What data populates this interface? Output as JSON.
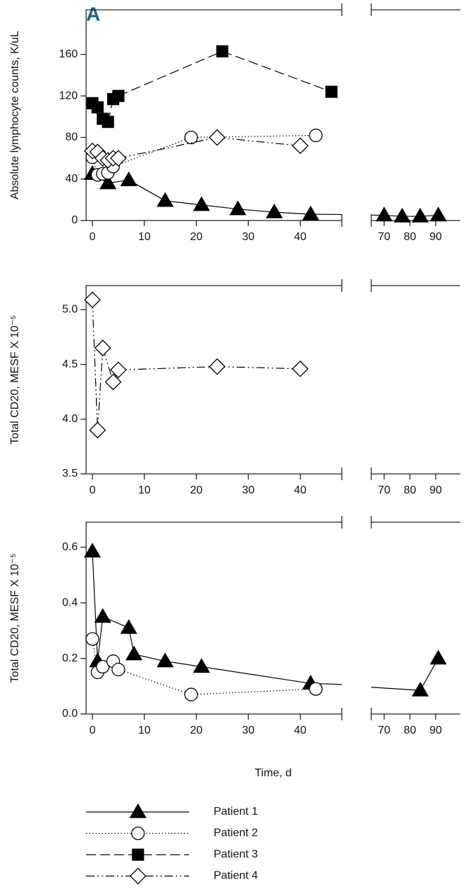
{
  "panel_label": "A",
  "legend_location": "bottom",
  "chart_data": [
    {
      "type": "line",
      "ylabel": "Absolute lymphocyte counts, K/uL",
      "xlim": [
        [
          -1.2,
          48
        ],
        [
          65,
          99.5
        ]
      ],
      "xticks": [
        0,
        10,
        20,
        30,
        40,
        70,
        80,
        90
      ],
      "ylim": [
        0,
        203
      ],
      "yticks": [
        0,
        40,
        80,
        120,
        160
      ],
      "series": [
        {
          "name": "Patient 1",
          "color": "#000000",
          "marker": "triangle",
          "marker_fill": "#000000",
          "line": "solid",
          "x": [
            0,
            3,
            7,
            14,
            21,
            28,
            35,
            42,
            70,
            77,
            84,
            91
          ],
          "values": [
            45,
            36,
            39,
            19,
            15,
            11,
            8,
            6,
            5,
            4,
            4,
            5
          ]
        },
        {
          "name": "Patient 2",
          "color": "#000000",
          "marker": "circle",
          "marker_fill": "#ffffff",
          "line": "dotted",
          "x": [
            0,
            1,
            2,
            3,
            4,
            19,
            43
          ],
          "values": [
            61,
            44,
            45,
            46,
            52,
            80,
            82
          ]
        },
        {
          "name": "Patient 3",
          "color": "#000000",
          "marker": "square",
          "marker_fill": "#000000",
          "line": "dashed",
          "x": [
            0,
            1,
            2,
            3,
            4,
            5,
            25,
            46
          ],
          "values": [
            113,
            109,
            98,
            95,
            117,
            120,
            163,
            124
          ]
        },
        {
          "name": "Patient 4",
          "color": "#000000",
          "marker": "diamond",
          "marker_fill": "#ffffff",
          "line": "dashdotdot",
          "x": [
            0,
            1,
            2,
            3,
            4,
            5,
            24,
            40
          ],
          "values": [
            67,
            66,
            60,
            58,
            60,
            60,
            80,
            72
          ]
        }
      ]
    },
    {
      "type": "line",
      "ylabel": "Total CD20, MESF X 10⁻⁵",
      "xlim": [
        [
          -1.2,
          48
        ],
        [
          65,
          99.5
        ]
      ],
      "xticks": [
        0,
        10,
        20,
        30,
        40,
        70,
        80,
        90
      ],
      "ylim": [
        3.5,
        5.22
      ],
      "yticks": [
        3.5,
        {
          "value": 4,
          "label": "4.0"
        },
        4.5,
        {
          "value": 5,
          "label": "5.0"
        }
      ],
      "series": [
        {
          "name": "Patient 4",
          "color": "#000000",
          "marker": "diamond",
          "marker_fill": "#ffffff",
          "line": "dashdotdot",
          "x": [
            0,
            1,
            2,
            4,
            5,
            24,
            40
          ],
          "values": [
            5.09,
            3.9,
            4.65,
            4.34,
            4.45,
            4.48,
            4.46
          ]
        }
      ]
    },
    {
      "type": "line",
      "ylabel": "Total CD20, MESF X 10⁻⁵",
      "xlabel": "Time, d",
      "xlim": [
        [
          -1.2,
          48
        ],
        [
          65,
          99.5
        ]
      ],
      "xticks": [
        0,
        10,
        20,
        30,
        40,
        70,
        80,
        90
      ],
      "ylim": [
        0,
        0.69
      ],
      "yticks": [
        {
          "value": 0,
          "label": "0.0"
        },
        0.2,
        0.4,
        0.6
      ],
      "series": [
        {
          "name": "Patient 1",
          "color": "#000000",
          "marker": "triangle",
          "marker_fill": "#000000",
          "line": "solid",
          "x": [
            0,
            1,
            2,
            7,
            8,
            14,
            21,
            42,
            84,
            91
          ],
          "values": [
            0.585,
            0.19,
            0.35,
            0.31,
            0.215,
            0.19,
            0.17,
            0.11,
            0.085,
            0.2
          ]
        },
        {
          "name": "Patient 2",
          "color": "#000000",
          "marker": "circle",
          "marker_fill": "#ffffff",
          "line": "dotted",
          "x": [
            0,
            1,
            2,
            4,
            5,
            19,
            43
          ],
          "values": [
            0.27,
            0.15,
            0.17,
            0.19,
            0.16,
            0.07,
            0.09
          ]
        }
      ]
    }
  ]
}
